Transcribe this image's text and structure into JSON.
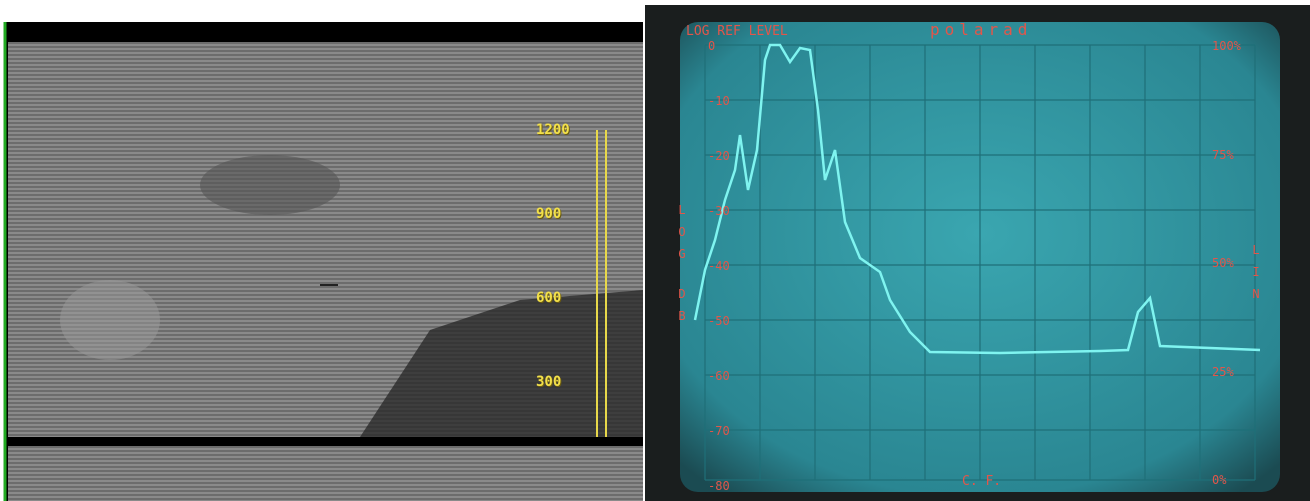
{
  "video_panel": {
    "scale_labels": [
      "1200",
      "900",
      "600",
      "300"
    ]
  },
  "analyzer_panel": {
    "ref_label": "LOG REF LEVEL",
    "brand": "polarad",
    "log_labels": [
      "0",
      "-10",
      "-20",
      "-30",
      "-40",
      "-50",
      "-60",
      "-70",
      "-80"
    ],
    "lin_labels": [
      "100%",
      "75%",
      "50%",
      "25%",
      "0%"
    ],
    "left_axis_title": [
      "LOG",
      "DB"
    ],
    "right_axis_title": "LIN",
    "bottom_label": "C. F."
  }
}
